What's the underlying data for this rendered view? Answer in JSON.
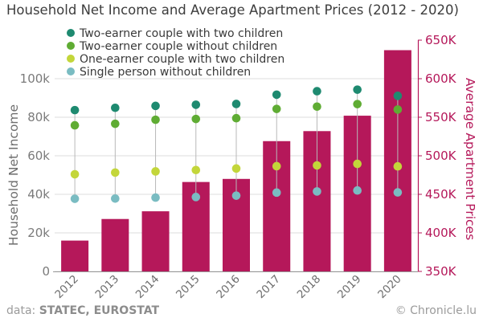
{
  "chart_data": {
    "type": "bar",
    "title": "Household Net Income and Average Apartment Prices (2012 - 2020)",
    "categories": [
      "2012",
      "2013",
      "2014",
      "2015",
      "2016",
      "2017",
      "2018",
      "2019",
      "2020"
    ],
    "bars": {
      "name": "Average Apartment Prices",
      "values": [
        390000,
        418000,
        428000,
        466000,
        470000,
        519000,
        532000,
        552000,
        637000
      ],
      "color": "#b5185a"
    },
    "series": [
      {
        "name": "Two-earner couple with two children",
        "color": "#1e8a70",
        "values": [
          83700,
          84900,
          85900,
          86500,
          86900,
          91700,
          93500,
          94300,
          91100
        ]
      },
      {
        "name": "Two-earner couple without children",
        "color": "#5fac33",
        "values": [
          75800,
          76600,
          78700,
          79100,
          79500,
          84300,
          85500,
          86800,
          84000
        ]
      },
      {
        "name": "One-earner couple with two children",
        "color": "#c3d63a",
        "values": [
          50400,
          51300,
          51900,
          52600,
          53400,
          54600,
          55000,
          55800,
          54500
        ]
      },
      {
        "name": "Single person without children",
        "color": "#7abcc2",
        "values": [
          37700,
          37800,
          38300,
          38600,
          39300,
          40900,
          41500,
          42000,
          41000
        ]
      }
    ],
    "ylabel_left": "Household Net Income",
    "ylabel_right": "Average Apartment Prices",
    "ylim_left": [
      0,
      120000
    ],
    "ylim_right": [
      350000,
      650000
    ],
    "yticks_left": [
      "0",
      "20k",
      "40k",
      "60k",
      "80k",
      "100k"
    ],
    "yticks_right": [
      "350K",
      "400K",
      "450K",
      "500K",
      "550K",
      "600K",
      "650K"
    ],
    "grid": true,
    "legend_position": "top-left"
  },
  "footer": {
    "source_prefix": "data: ",
    "source_names": "STATEC, EUROSTAT",
    "credit": "© Chronicle.lu"
  }
}
